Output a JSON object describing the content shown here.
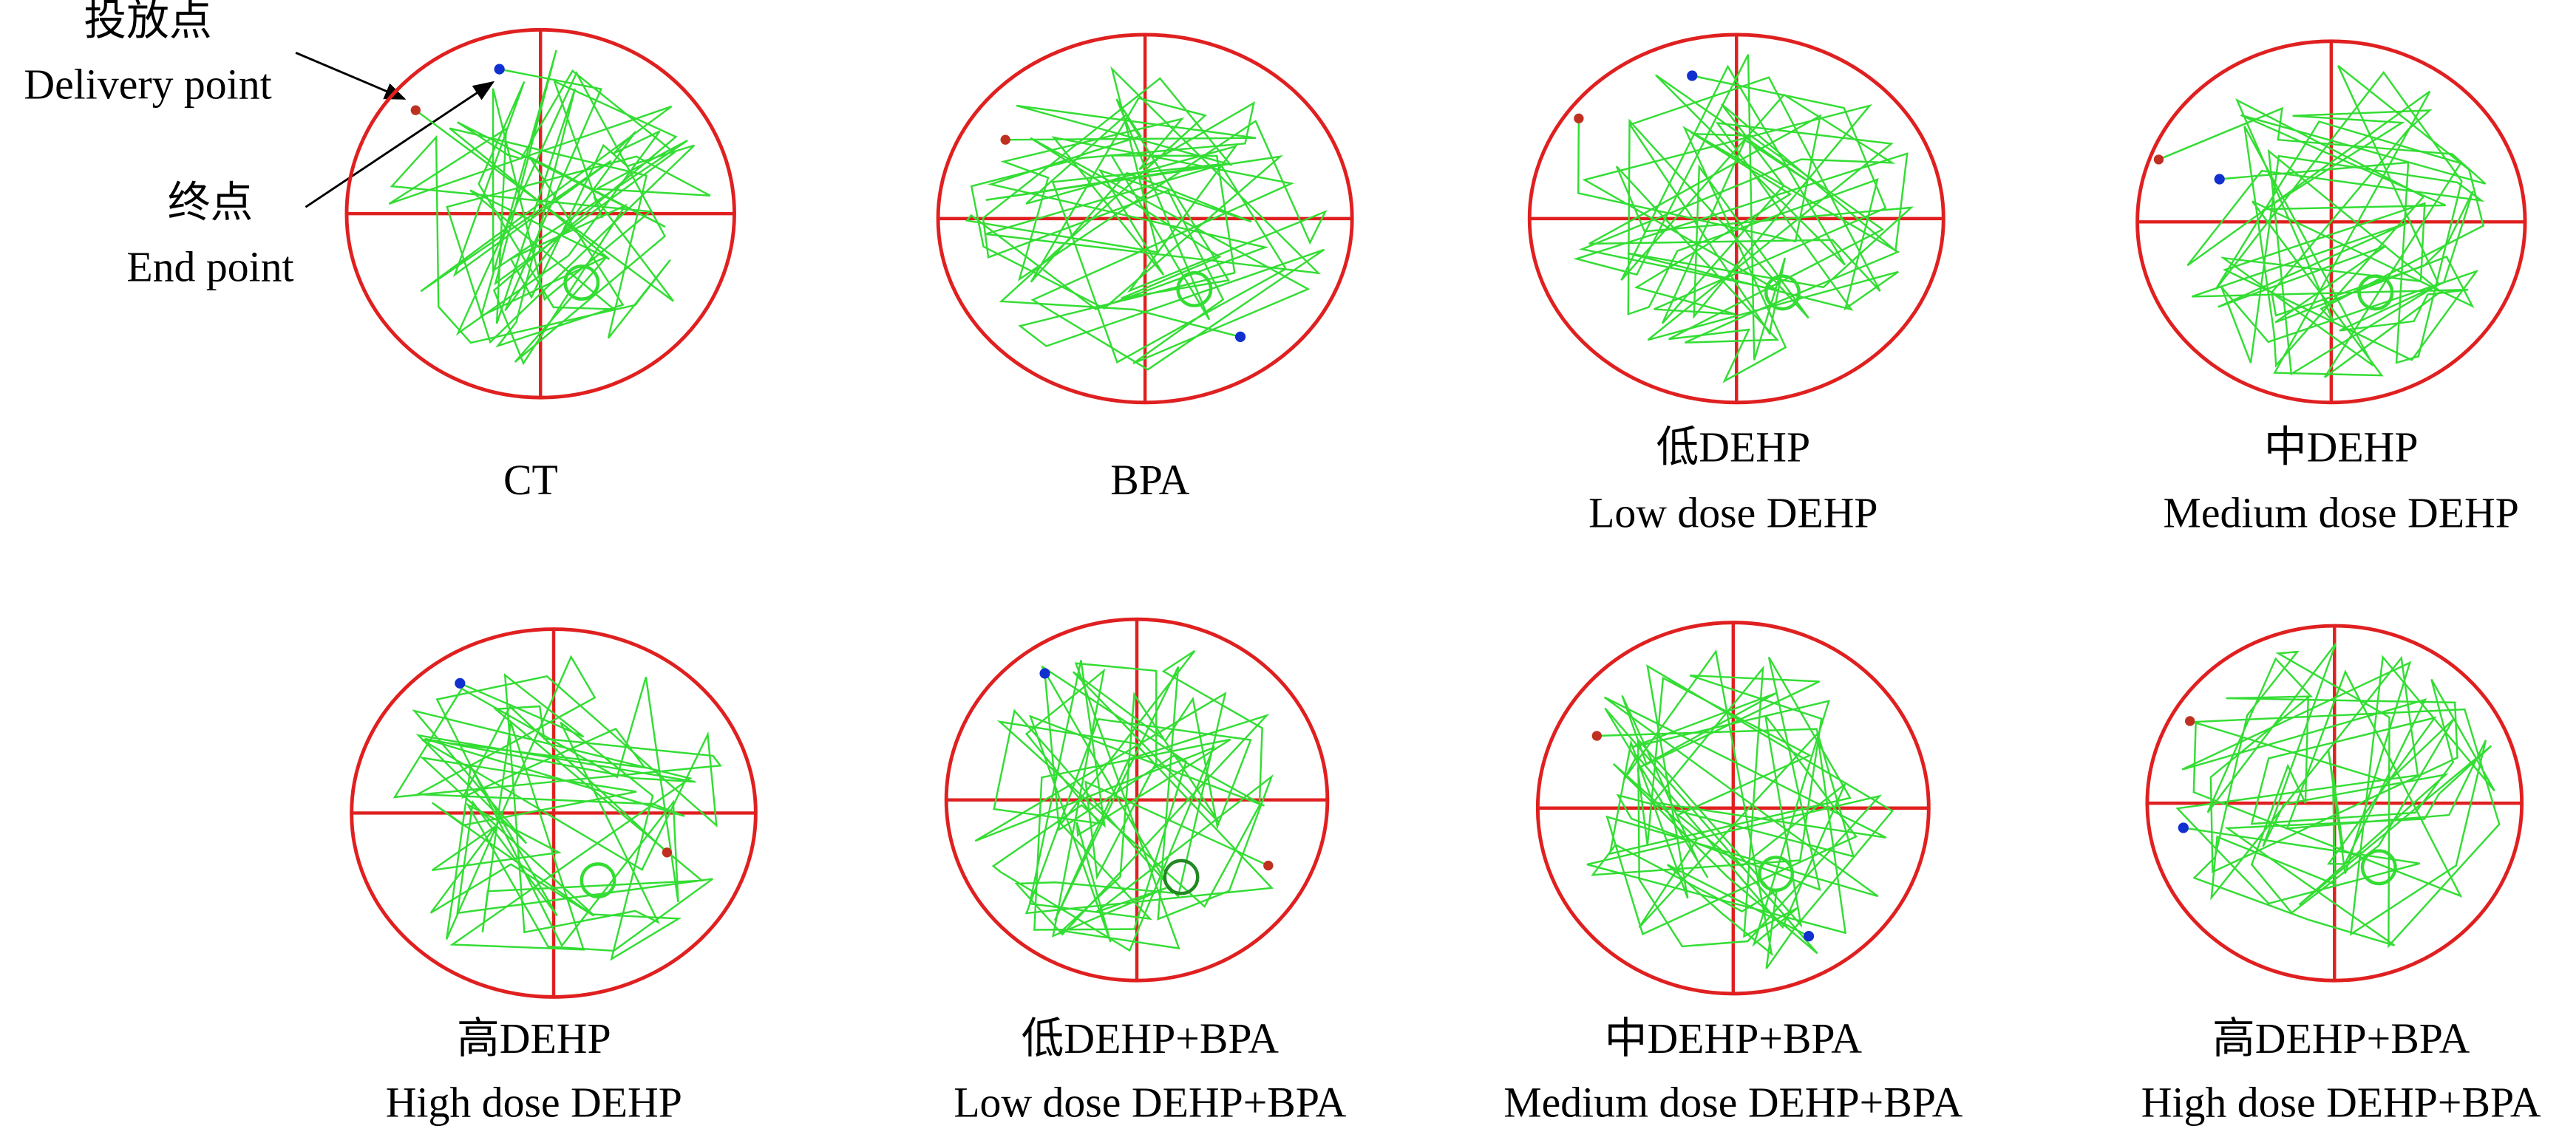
{
  "annotations": {
    "delivery_cn": "投放点",
    "delivery_en": "Delivery point",
    "end_cn": "终点",
    "end_en": "End point"
  },
  "panels": [
    {
      "label": "CT"
    },
    {
      "label": "BPA"
    },
    {
      "label_cn": "低DEHP",
      "label_en": "Low dose DEHP"
    },
    {
      "label_cn": "中DEHP",
      "label_en": "Medium dose DEHP"
    },
    {
      "label_cn": "高DEHP",
      "label_en": "High dose DEHP"
    },
    {
      "label_cn": "低DEHP+BPA",
      "label_en": "Low dose DEHP+BPA"
    },
    {
      "label_cn": "中DEHP+BPA",
      "label_en": "Medium dose DEHP+BPA"
    },
    {
      "label_cn": "高DEHP+BPA",
      "label_en": "High dose DEHP+BPA"
    }
  ]
}
